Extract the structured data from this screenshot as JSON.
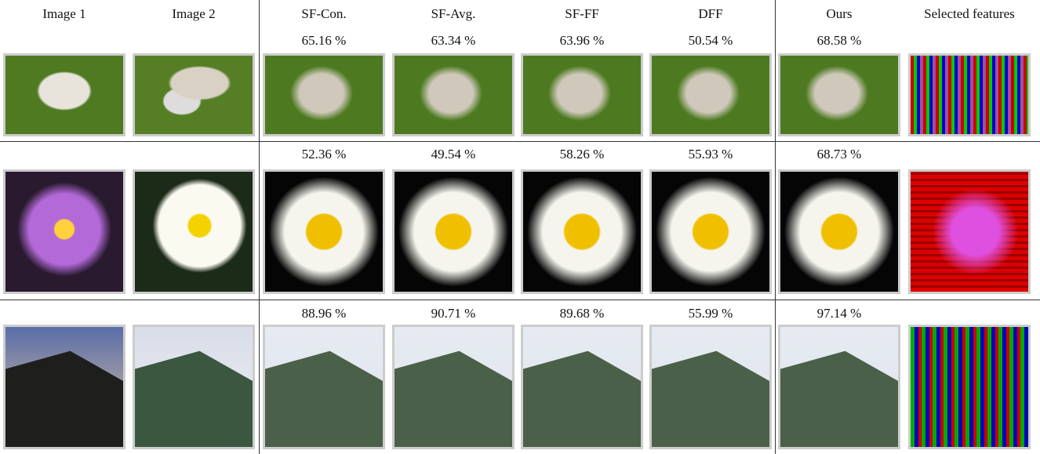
{
  "header": [
    "Image 1",
    "Image 2",
    "SF-Con.",
    "SF-Avg.",
    "SF-FF",
    "DFF",
    "Ours",
    "Selected features"
  ],
  "rows": [
    {
      "scores": [
        "65.16 %",
        "63.34 %",
        "63.96 %",
        "50.54 %",
        "68.58 %"
      ]
    },
    {
      "scores": [
        "52.36 %",
        "49.54 %",
        "58.26 %",
        "55.93 %",
        "68.73 %"
      ]
    },
    {
      "scores": [
        "88.96 %",
        "90.71 %",
        "89.68 %",
        "55.99 %",
        "97.14 %"
      ]
    }
  ]
}
